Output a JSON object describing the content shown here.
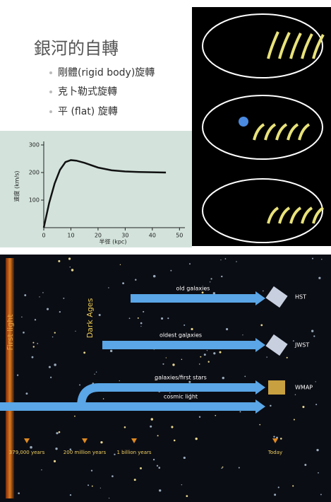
{
  "slide": {
    "title": "銀河的自轉",
    "bullets": [
      "剛體(rigid body)旋轉",
      "克卜勒式旋轉",
      "平 (flat) 旋轉"
    ]
  },
  "rotation_curve": {
    "type": "line",
    "x": [
      0,
      2,
      4,
      6,
      8,
      10,
      12,
      15,
      20,
      25,
      30,
      35,
      40,
      45
    ],
    "values": [
      0,
      90,
      160,
      210,
      238,
      245,
      243,
      235,
      218,
      208,
      204,
      202,
      201,
      200
    ],
    "xlim": [
      0,
      52
    ],
    "ylim": [
      0,
      300
    ],
    "xticks": [
      0,
      10,
      20,
      30,
      40,
      50
    ],
    "yticks": [
      100,
      200,
      300
    ],
    "xlabel": "半徑 (kpc)",
    "ylabel": "速度 (km/s)",
    "color": "#111111"
  },
  "timeline": {
    "arrows": [
      "old galaxies",
      "oldest galaxies",
      "galaxies/first stars",
      "cosmic light"
    ],
    "spacecraft": [
      "HST",
      "JWST",
      "WMAP"
    ],
    "epochs": [
      "379,000 years",
      "200 million years",
      "1 billion years",
      "Today"
    ],
    "vertical": [
      "First light",
      "Dark Ages"
    ]
  }
}
